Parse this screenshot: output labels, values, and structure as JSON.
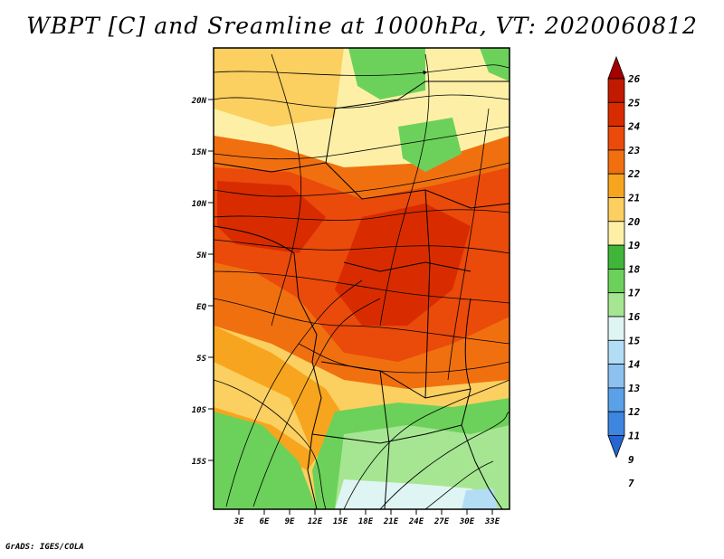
{
  "title": "WBPT [C] and Sreamline at 1000hPa, VT: 2020060812",
  "footer": "GrADS: IGES/COLA",
  "map": {
    "lat_labels": [
      "20N",
      "15N",
      "10N",
      "5N",
      "EQ",
      "5S",
      "10S",
      "15S"
    ],
    "lon_labels": [
      "3E",
      "6E",
      "9E",
      "12E",
      "15E",
      "18E",
      "21E",
      "24E",
      "27E",
      "30E",
      "33E"
    ]
  },
  "colorbar": {
    "labels": [
      "26",
      "25",
      "24",
      "23",
      "22",
      "21",
      "20",
      "19",
      "18",
      "17",
      "16",
      "15",
      "14",
      "13",
      "12",
      "11",
      "9",
      "7"
    ],
    "colors": [
      "#a50000",
      "#c01a00",
      "#d82c00",
      "#ea4a0a",
      "#f07010",
      "#f7a51e",
      "#fbcf60",
      "#fdf0a6",
      "#3fb53a",
      "#6cd15a",
      "#a6e693",
      "#dff5f3",
      "#b3dcf5",
      "#8dc1ef",
      "#5aa1e8",
      "#3d86e0",
      "#2666d2"
    ]
  }
}
